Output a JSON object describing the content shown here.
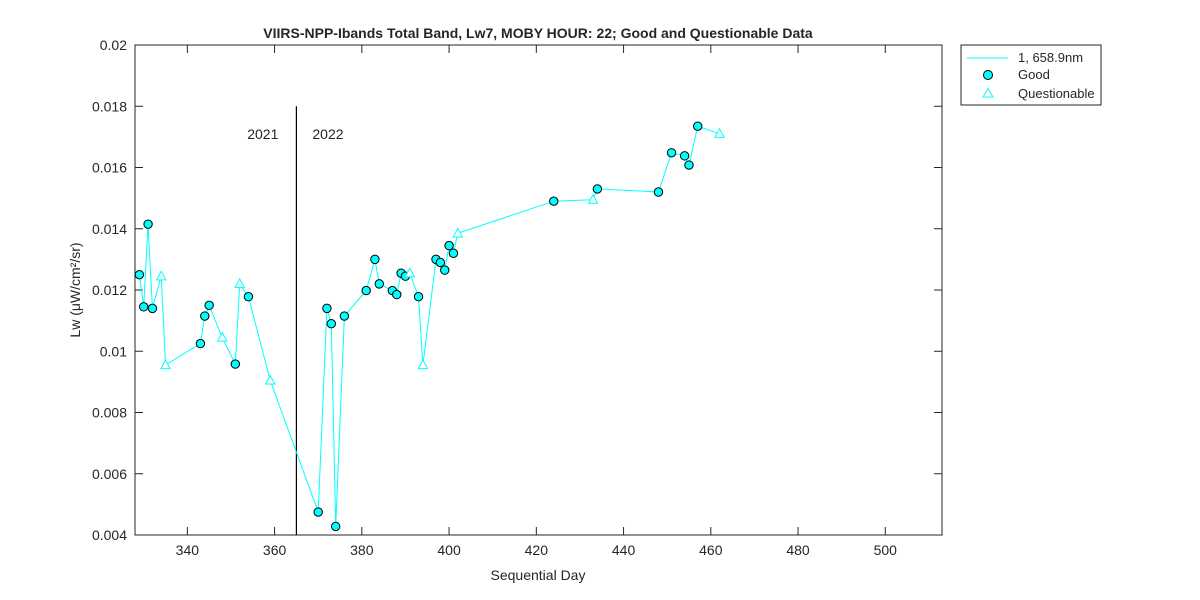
{
  "chart_data": {
    "type": "line",
    "title": "VIIRS-NPP-Ibands Total Band,  Lw7, MOBY HOUR: 22;  Good and Questionable Data",
    "xlabel": "Sequential Day",
    "ylabel": "Lw (μW/cm²/sr)",
    "xlim": [
      328,
      513
    ],
    "ylim": [
      0.004,
      0.02
    ],
    "xticks": [
      340,
      360,
      380,
      400,
      420,
      440,
      460,
      480,
      500
    ],
    "yticks": [
      0.004,
      0.006,
      0.008,
      0.01,
      0.012,
      0.014,
      0.016,
      0.018,
      0.02
    ],
    "grid": false,
    "legend_position": "outside-top-right",
    "color": "#00ffff",
    "legend": {
      "line": "1, 658.9nm",
      "good": "Good",
      "questionable": "Questionable"
    },
    "divider": {
      "x": 365,
      "y_top": 0.018,
      "left_label": "2021",
      "right_label": "2022",
      "label_y": 0.0171
    },
    "series": [
      {
        "name": "1, 658.9nm",
        "points": [
          {
            "x": 329,
            "y": 0.0125,
            "q": "good"
          },
          {
            "x": 330,
            "y": 0.01145,
            "q": "good"
          },
          {
            "x": 331,
            "y": 0.01415,
            "q": "good"
          },
          {
            "x": 332,
            "y": 0.0114,
            "q": "good"
          },
          {
            "x": 334,
            "y": 0.01245,
            "q": "questionable"
          },
          {
            "x": 335,
            "y": 0.00955,
            "q": "questionable"
          },
          {
            "x": 343,
            "y": 0.01025,
            "q": "good"
          },
          {
            "x": 344,
            "y": 0.01115,
            "q": "good"
          },
          {
            "x": 345,
            "y": 0.0115,
            "q": "good"
          },
          {
            "x": 348,
            "y": 0.01045,
            "q": "questionable"
          },
          {
            "x": 351,
            "y": 0.00958,
            "q": "good"
          },
          {
            "x": 352,
            "y": 0.0122,
            "q": "questionable"
          },
          {
            "x": 354,
            "y": 0.01178,
            "q": "good"
          },
          {
            "x": 359,
            "y": 0.00905,
            "q": "questionable"
          },
          {
            "x": 370,
            "y": 0.00475,
            "q": "good"
          },
          {
            "x": 372,
            "y": 0.0114,
            "q": "good"
          },
          {
            "x": 373,
            "y": 0.0109,
            "q": "good"
          },
          {
            "x": 374,
            "y": 0.00428,
            "q": "good"
          },
          {
            "x": 376,
            "y": 0.01115,
            "q": "good"
          },
          {
            "x": 381,
            "y": 0.01198,
            "q": "good"
          },
          {
            "x": 383,
            "y": 0.013,
            "q": "good"
          },
          {
            "x": 384,
            "y": 0.0122,
            "q": "good"
          },
          {
            "x": 387,
            "y": 0.01198,
            "q": "good"
          },
          {
            "x": 388,
            "y": 0.01185,
            "q": "good"
          },
          {
            "x": 389,
            "y": 0.01255,
            "q": "good"
          },
          {
            "x": 390,
            "y": 0.01245,
            "q": "good"
          },
          {
            "x": 391,
            "y": 0.01255,
            "q": "questionable"
          },
          {
            "x": 393,
            "y": 0.01178,
            "q": "good"
          },
          {
            "x": 394,
            "y": 0.00955,
            "q": "questionable"
          },
          {
            "x": 397,
            "y": 0.013,
            "q": "good"
          },
          {
            "x": 398,
            "y": 0.0129,
            "q": "good"
          },
          {
            "x": 399,
            "y": 0.01265,
            "q": "good"
          },
          {
            "x": 400,
            "y": 0.01345,
            "q": "good"
          },
          {
            "x": 401,
            "y": 0.0132,
            "q": "good"
          },
          {
            "x": 402,
            "y": 0.01385,
            "q": "questionable"
          },
          {
            "x": 424,
            "y": 0.0149,
            "q": "good"
          },
          {
            "x": 433,
            "y": 0.01495,
            "q": "questionable"
          },
          {
            "x": 434,
            "y": 0.0153,
            "q": "good"
          },
          {
            "x": 448,
            "y": 0.0152,
            "q": "good"
          },
          {
            "x": 451,
            "y": 0.01648,
            "q": "good"
          },
          {
            "x": 454,
            "y": 0.01638,
            "q": "good"
          },
          {
            "x": 455,
            "y": 0.01608,
            "q": "good"
          },
          {
            "x": 457,
            "y": 0.01735,
            "q": "good"
          },
          {
            "x": 462,
            "y": 0.0171,
            "q": "questionable"
          }
        ]
      }
    ]
  }
}
